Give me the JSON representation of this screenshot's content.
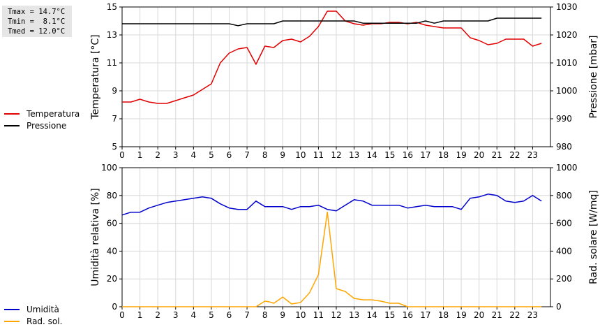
{
  "stats": {
    "tmax": "Tmax = 14.7°C",
    "tmin": "Tmin =  8.1°C",
    "tmed": "Tmed = 12.0°C"
  },
  "colors": {
    "temperatura": "#e00000",
    "pressione": "#000000",
    "umidita": "#0000cc",
    "radiazione": "#ffa500",
    "grid": "#d8d8d8"
  },
  "legend_top": [
    {
      "label": "Temperatura",
      "color": "#e00000"
    },
    {
      "label": "Pressione",
      "color": "#000000"
    }
  ],
  "legend_bottom": [
    {
      "label": "Umidità",
      "color": "#0000cc"
    },
    {
      "label": "Rad. sol.",
      "color": "#ffa500"
    }
  ],
  "chart_data": [
    {
      "type": "line",
      "xlabel": "",
      "xlim": [
        0,
        24
      ],
      "xticks": [
        0,
        1,
        2,
        3,
        4,
        5,
        6,
        7,
        8,
        9,
        10,
        11,
        12,
        13,
        14,
        15,
        16,
        17,
        18,
        19,
        20,
        21,
        22,
        23
      ],
      "ylabel": "Temperatura [°C]",
      "ylim": [
        5,
        15
      ],
      "yticks": [
        5,
        7,
        9,
        11,
        13,
        15
      ],
      "y2label": "Pressione [mbar]",
      "y2lim": [
        980,
        1030
      ],
      "y2ticks": [
        980,
        990,
        1000,
        1010,
        1020,
        1030
      ],
      "grid": true,
      "series": [
        {
          "name": "Temperatura",
          "axis": "left",
          "x": [
            0,
            0.5,
            1,
            1.5,
            2,
            2.5,
            3,
            3.5,
            4,
            4.5,
            5,
            5.5,
            6,
            6.5,
            7,
            7.5,
            8,
            8.5,
            9,
            9.5,
            10,
            10.5,
            11,
            11.5,
            12,
            12.5,
            13,
            13.5,
            14,
            14.5,
            15,
            15.5,
            16,
            16.5,
            17,
            17.5,
            18,
            18.5,
            19,
            19.5,
            20,
            20.5,
            21,
            21.5,
            22,
            22.5,
            23,
            23.5
          ],
          "values": [
            8.2,
            8.2,
            8.4,
            8.2,
            8.1,
            8.1,
            8.3,
            8.5,
            8.7,
            9.1,
            9.5,
            11.0,
            11.7,
            12.0,
            12.1,
            10.9,
            12.2,
            12.1,
            12.6,
            12.7,
            12.5,
            12.9,
            13.6,
            14.7,
            14.7,
            14.0,
            13.8,
            13.7,
            13.8,
            13.8,
            13.9,
            13.9,
            13.8,
            13.9,
            13.7,
            13.6,
            13.5,
            13.5,
            13.5,
            12.8,
            12.6,
            12.3,
            12.4,
            12.7,
            12.7,
            12.7,
            12.2,
            12.4
          ]
        },
        {
          "name": "Pressione",
          "axis": "right",
          "x": [
            0,
            0.5,
            1,
            1.5,
            2,
            2.5,
            3,
            3.5,
            4,
            4.5,
            5,
            5.5,
            6,
            6.5,
            7,
            7.5,
            8,
            8.5,
            9,
            9.5,
            10,
            10.5,
            11,
            11.5,
            12,
            12.5,
            13,
            13.5,
            14,
            14.5,
            15,
            15.5,
            16,
            16.5,
            17,
            17.5,
            18,
            18.5,
            19,
            19.5,
            20,
            20.5,
            21,
            21.5,
            22,
            22.5,
            23,
            23.5
          ],
          "values": [
            1024,
            1024,
            1024,
            1024,
            1024,
            1024,
            1024,
            1024,
            1024,
            1024,
            1024,
            1024,
            1024,
            1023.3,
            1024,
            1024,
            1024,
            1024,
            1025,
            1025,
            1025,
            1025,
            1025,
            1025,
            1025,
            1025,
            1025,
            1024.2,
            1024.2,
            1024.2,
            1024.2,
            1024.2,
            1024.2,
            1024.2,
            1025,
            1024.2,
            1025,
            1025,
            1025,
            1025,
            1025,
            1025,
            1026,
            1026,
            1026,
            1026,
            1026,
            1026
          ]
        }
      ]
    },
    {
      "type": "line",
      "xlabel": "",
      "xlim": [
        0,
        24
      ],
      "xticks": [
        0,
        1,
        2,
        3,
        4,
        5,
        6,
        7,
        8,
        9,
        10,
        11,
        12,
        13,
        14,
        15,
        16,
        17,
        18,
        19,
        20,
        21,
        22,
        23
      ],
      "ylabel": "Umidità relativa [%]",
      "ylim": [
        0,
        100
      ],
      "yticks": [
        0,
        20,
        40,
        60,
        80,
        100
      ],
      "y2label": "Rad. solare [W/mq]",
      "y2lim": [
        0,
        1000
      ],
      "y2ticks": [
        0,
        200,
        400,
        600,
        800,
        1000
      ],
      "grid": true,
      "series": [
        {
          "name": "Umidità",
          "axis": "left",
          "x": [
            0,
            0.5,
            1,
            1.5,
            2,
            2.5,
            3,
            3.5,
            4,
            4.5,
            5,
            5.5,
            6,
            6.5,
            7,
            7.5,
            8,
            8.5,
            9,
            9.5,
            10,
            10.5,
            11,
            11.5,
            12,
            12.5,
            13,
            13.5,
            14,
            14.5,
            15,
            15.5,
            16,
            16.5,
            17,
            17.5,
            18,
            18.5,
            19,
            19.5,
            20,
            20.5,
            21,
            21.5,
            22,
            22.5,
            23,
            23.5
          ],
          "values": [
            66,
            68,
            68,
            71,
            73,
            75,
            76,
            77,
            78,
            79,
            78,
            74,
            71,
            70,
            70,
            76,
            72,
            72,
            72,
            70,
            72,
            72,
            73,
            70,
            69,
            73,
            77,
            76,
            73,
            73,
            73,
            73,
            71,
            72,
            73,
            72,
            72,
            72,
            70,
            78,
            79,
            81,
            80,
            76,
            75,
            76,
            80,
            76
          ]
        },
        {
          "name": "Rad. sol.",
          "axis": "right",
          "x": [
            0,
            0.5,
            1,
            1.5,
            2,
            2.5,
            3,
            3.5,
            4,
            4.5,
            5,
            5.5,
            6,
            6.5,
            7,
            7.5,
            8,
            8.25,
            8.5,
            9,
            9.5,
            10,
            10.5,
            11,
            11.5,
            12,
            12.5,
            13,
            13.5,
            14,
            14.5,
            15,
            15.5,
            16,
            16.5,
            17,
            17.5,
            18,
            18.5,
            19,
            19.5,
            20,
            20.5,
            21,
            21.5,
            22,
            22.5,
            23,
            23.5
          ],
          "values": [
            0,
            0,
            0,
            0,
            0,
            0,
            0,
            0,
            0,
            0,
            0,
            0,
            0,
            0,
            0,
            0,
            40,
            35,
            25,
            70,
            20,
            30,
            100,
            230,
            680,
            130,
            110,
            60,
            50,
            50,
            40,
            25,
            25,
            0,
            0,
            0,
            0,
            0,
            0,
            0,
            0,
            0,
            0,
            0,
            0,
            0,
            0,
            0,
            0
          ]
        }
      ]
    }
  ]
}
